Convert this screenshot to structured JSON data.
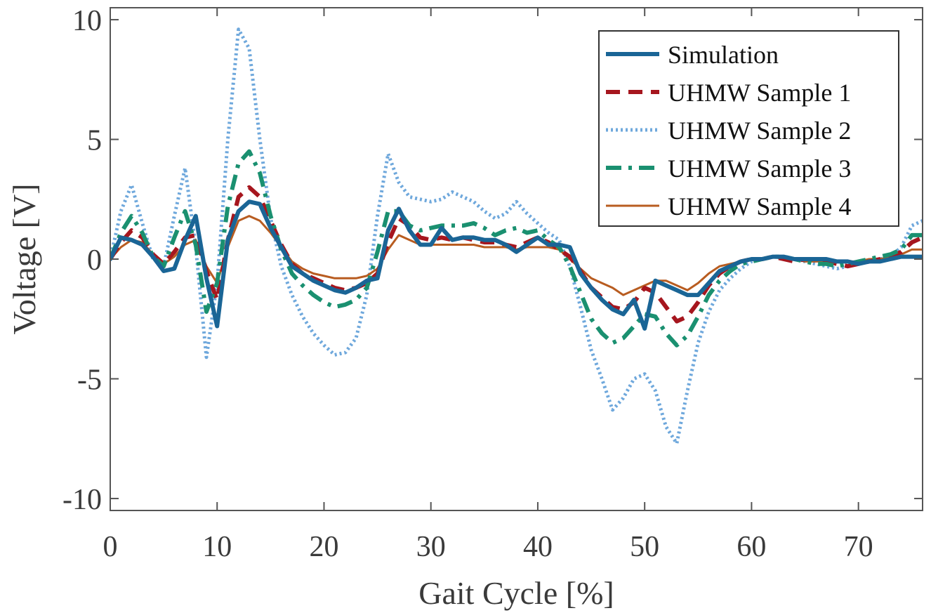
{
  "chart_data": {
    "type": "line",
    "xlabel": "Gait Cycle [%]",
    "ylabel": "Voltage [V]",
    "xlim": [
      0,
      76
    ],
    "ylim": [
      -10.5,
      10.5
    ],
    "xticks": [
      0,
      10,
      20,
      30,
      40,
      50,
      60,
      70
    ],
    "yticks": [
      -10,
      -5,
      0,
      5,
      10
    ],
    "ytick_labels": [
      "-10",
      "-5",
      "0",
      "5",
      "10"
    ],
    "grid": false,
    "legend_position": "top-right",
    "series": [
      {
        "name": "Simulation",
        "color": "#1a6596",
        "style": "solid-thick",
        "x": [
          0,
          1,
          2,
          3,
          4,
          5,
          6,
          7,
          8,
          9,
          10,
          11,
          12,
          13,
          14,
          15,
          16,
          17,
          18,
          19,
          20,
          21,
          22,
          23,
          24,
          25,
          26,
          27,
          28,
          29,
          30,
          31,
          32,
          33,
          34,
          35,
          36,
          37,
          38,
          39,
          40,
          41,
          42,
          43,
          44,
          45,
          46,
          47,
          48,
          49,
          50,
          51,
          52,
          53,
          54,
          55,
          56,
          57,
          58,
          59,
          60,
          61,
          62,
          63,
          64,
          65,
          66,
          67,
          68,
          69,
          70,
          71,
          72,
          73,
          74,
          75,
          76
        ],
        "y": [
          0,
          0.9,
          0.8,
          0.6,
          0.1,
          -0.5,
          -0.4,
          0.8,
          1.8,
          -0.8,
          -2.8,
          0.8,
          2.0,
          2.4,
          2.3,
          1.3,
          0.5,
          -0.3,
          -0.6,
          -0.9,
          -1.1,
          -1.3,
          -1.4,
          -1.2,
          -0.9,
          -0.8,
          1.2,
          2.1,
          1.2,
          0.6,
          0.6,
          1.3,
          0.8,
          0.9,
          0.9,
          0.8,
          0.8,
          0.6,
          0.3,
          0.6,
          0.9,
          0.6,
          0.6,
          0.5,
          -0.6,
          -1.2,
          -1.7,
          -2.1,
          -2.3,
          -1.7,
          -2.9,
          -0.9,
          -1.1,
          -1.3,
          -1.5,
          -1.5,
          -1.0,
          -0.5,
          -0.3,
          -0.1,
          0.0,
          0.0,
          0.1,
          0.1,
          0.0,
          0.0,
          0.0,
          0.0,
          -0.1,
          -0.1,
          -0.2,
          -0.1,
          -0.1,
          0.0,
          0.1,
          0.1,
          0.1
        ]
      },
      {
        "name": "UHMW Sample 1",
        "color": "#a6161e",
        "style": "dashed",
        "x": [
          0,
          1,
          2,
          3,
          4,
          5,
          6,
          7,
          8,
          9,
          10,
          11,
          12,
          13,
          14,
          15,
          16,
          17,
          18,
          19,
          20,
          21,
          22,
          23,
          24,
          25,
          26,
          27,
          28,
          29,
          30,
          31,
          32,
          33,
          34,
          35,
          36,
          37,
          38,
          39,
          40,
          41,
          42,
          43,
          44,
          45,
          46,
          47,
          48,
          49,
          50,
          51,
          52,
          53,
          54,
          55,
          56,
          57,
          58,
          59,
          60,
          61,
          62,
          63,
          64,
          65,
          66,
          67,
          68,
          69,
          70,
          71,
          72,
          73,
          74,
          75,
          76
        ],
        "y": [
          0,
          0.7,
          1.2,
          0.9,
          0.2,
          -0.2,
          0.3,
          0.9,
          1.0,
          -0.5,
          -1.7,
          0.8,
          2.6,
          3.0,
          2.6,
          1.6,
          0.6,
          -0.2,
          -0.6,
          -0.8,
          -1.0,
          -1.2,
          -1.3,
          -1.2,
          -1.0,
          -0.6,
          0.7,
          1.7,
          1.4,
          0.9,
          0.8,
          0.9,
          0.8,
          0.9,
          0.8,
          0.7,
          0.7,
          0.6,
          0.5,
          0.7,
          0.9,
          0.7,
          0.4,
          0.1,
          -0.5,
          -1.2,
          -1.6,
          -2.0,
          -2.1,
          -1.8,
          -1.2,
          -1.4,
          -2.0,
          -2.6,
          -2.4,
          -1.8,
          -1.1,
          -0.6,
          -0.3,
          -0.1,
          0.0,
          0.0,
          0.1,
          0.0,
          -0.1,
          0.0,
          0.0,
          -0.1,
          -0.2,
          -0.3,
          -0.2,
          -0.1,
          0.0,
          0.1,
          0.3,
          0.7,
          0.9
        ]
      },
      {
        "name": "UHMW Sample 2",
        "color": "#6fa8dc",
        "style": "dotted",
        "x": [
          0,
          1,
          2,
          3,
          4,
          5,
          6,
          7,
          8,
          9,
          10,
          11,
          12,
          13,
          14,
          15,
          16,
          17,
          18,
          19,
          20,
          21,
          22,
          23,
          24,
          25,
          26,
          27,
          28,
          29,
          30,
          31,
          32,
          33,
          34,
          35,
          36,
          37,
          38,
          39,
          40,
          41,
          42,
          43,
          44,
          45,
          46,
          47,
          48,
          49,
          50,
          51,
          52,
          53,
          54,
          55,
          56,
          57,
          58,
          59,
          60,
          61,
          62,
          63,
          64,
          65,
          66,
          67,
          68,
          69,
          70,
          71,
          72,
          73,
          74,
          75,
          76
        ],
        "y": [
          0,
          2.0,
          3.1,
          1.5,
          0.0,
          -0.3,
          1.8,
          3.8,
          0.5,
          -4.1,
          -1.0,
          5.0,
          9.6,
          8.8,
          5.0,
          1.7,
          -0.3,
          -1.5,
          -2.4,
          -3.1,
          -3.6,
          -4.0,
          -3.9,
          -3.3,
          -1.5,
          1.8,
          4.4,
          3.2,
          2.6,
          2.5,
          2.4,
          2.5,
          2.8,
          2.6,
          2.4,
          2.0,
          1.7,
          1.9,
          2.4,
          1.9,
          1.5,
          1.1,
          0.8,
          -0.3,
          -2.0,
          -3.8,
          -5.0,
          -6.3,
          -5.8,
          -5.0,
          -4.8,
          -5.5,
          -7.0,
          -7.7,
          -5.5,
          -3.5,
          -2.2,
          -1.3,
          -0.8,
          -0.4,
          -0.1,
          0.0,
          0.1,
          0.1,
          0.0,
          -0.1,
          -0.2,
          -0.3,
          -0.4,
          -0.3,
          -0.2,
          -0.1,
          0.0,
          0.1,
          0.5,
          1.4,
          1.6
        ]
      },
      {
        "name": "UHMW Sample 3",
        "color": "#1a9070",
        "style": "dashdot",
        "x": [
          0,
          1,
          2,
          3,
          4,
          5,
          6,
          7,
          8,
          9,
          10,
          11,
          12,
          13,
          14,
          15,
          16,
          17,
          18,
          19,
          20,
          21,
          22,
          23,
          24,
          25,
          26,
          27,
          28,
          29,
          30,
          31,
          32,
          33,
          34,
          35,
          36,
          37,
          38,
          39,
          40,
          41,
          42,
          43,
          44,
          45,
          46,
          47,
          48,
          49,
          50,
          51,
          52,
          53,
          54,
          55,
          56,
          57,
          58,
          59,
          60,
          61,
          62,
          63,
          64,
          65,
          66,
          67,
          68,
          69,
          70,
          71,
          72,
          73,
          74,
          75,
          76
        ],
        "y": [
          0,
          1.1,
          1.8,
          1.1,
          0.1,
          -0.3,
          0.9,
          2.0,
          0.6,
          -2.2,
          -1.0,
          2.2,
          4.0,
          4.5,
          3.6,
          1.8,
          0.4,
          -0.6,
          -1.1,
          -1.5,
          -1.8,
          -2.0,
          -1.9,
          -1.7,
          -1.2,
          0.3,
          2.0,
          2.0,
          1.4,
          1.2,
          1.3,
          1.4,
          1.4,
          1.4,
          1.5,
          1.3,
          1.0,
          1.2,
          1.3,
          1.1,
          1.2,
          0.8,
          0.5,
          -0.3,
          -1.4,
          -2.5,
          -3.1,
          -3.5,
          -3.3,
          -2.8,
          -2.3,
          -2.4,
          -3.1,
          -3.6,
          -3.2,
          -2.4,
          -1.5,
          -0.9,
          -0.5,
          -0.2,
          -0.1,
          0.0,
          0.1,
          0.1,
          0.0,
          -0.1,
          -0.2,
          -0.2,
          -0.3,
          -0.2,
          -0.1,
          0.0,
          0.1,
          0.2,
          0.4,
          1.0,
          1.0
        ]
      },
      {
        "name": "UHMW Sample 4",
        "color": "#b85c20",
        "style": "solid-thin",
        "x": [
          0,
          1,
          2,
          3,
          4,
          5,
          6,
          7,
          8,
          9,
          10,
          11,
          12,
          13,
          14,
          15,
          16,
          17,
          18,
          19,
          20,
          21,
          22,
          23,
          24,
          25,
          26,
          27,
          28,
          29,
          30,
          31,
          32,
          33,
          34,
          35,
          36,
          37,
          38,
          39,
          40,
          41,
          42,
          43,
          44,
          45,
          46,
          47,
          48,
          49,
          50,
          51,
          52,
          53,
          54,
          55,
          56,
          57,
          58,
          59,
          60,
          61,
          62,
          63,
          64,
          65,
          66,
          67,
          68,
          69,
          70,
          71,
          72,
          73,
          74,
          75,
          76
        ],
        "y": [
          0,
          0.5,
          0.8,
          0.7,
          0.2,
          -0.2,
          0.1,
          0.6,
          0.8,
          -0.3,
          -1.0,
          0.5,
          1.6,
          1.8,
          1.6,
          1.1,
          0.5,
          -0.1,
          -0.4,
          -0.6,
          -0.7,
          -0.8,
          -0.8,
          -0.8,
          -0.7,
          -0.4,
          0.4,
          1.0,
          0.8,
          0.6,
          0.6,
          0.6,
          0.6,
          0.6,
          0.6,
          0.5,
          0.5,
          0.5,
          0.4,
          0.5,
          0.5,
          0.5,
          0.4,
          0.0,
          -0.4,
          -0.8,
          -1.0,
          -1.2,
          -1.5,
          -1.3,
          -1.1,
          -0.9,
          -0.9,
          -1.1,
          -1.3,
          -1.0,
          -0.6,
          -0.3,
          -0.2,
          -0.1,
          0.0,
          0.0,
          0.1,
          0.0,
          0.0,
          -0.1,
          -0.1,
          -0.1,
          -0.1,
          -0.1,
          -0.1,
          0.0,
          0.0,
          0.1,
          0.2,
          0.4,
          0.4
        ]
      }
    ]
  }
}
